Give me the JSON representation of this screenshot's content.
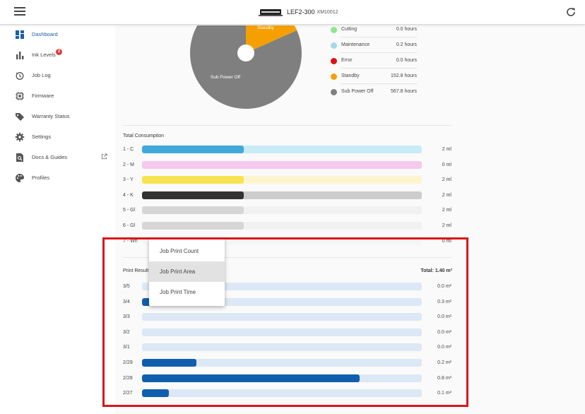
{
  "header": {
    "device_name": "LEF2-300",
    "device_serial": "XM10012"
  },
  "icons": {
    "menu": "hamburger-menu-icon",
    "refresh": "refresh-icon",
    "printer": "printer-icon"
  },
  "sidebar": {
    "items": [
      {
        "label": "Dashboard",
        "icon": "dashboard-icon",
        "active": true
      },
      {
        "label": "Ink Levels",
        "icon": "bar-chart-icon",
        "badge": "2"
      },
      {
        "label": "Job Log",
        "icon": "history-icon"
      },
      {
        "label": "Firmware",
        "icon": "chip-icon"
      },
      {
        "label": "Warranty Status",
        "icon": "tag-icon"
      },
      {
        "label": "Settings",
        "icon": "gear-icon"
      },
      {
        "label": "Docs & Guides",
        "icon": "document-search-icon",
        "external": true
      },
      {
        "label": "Profiles",
        "icon": "palette-icon"
      }
    ]
  },
  "status_pie": {
    "slice_labels": {
      "standby": "Standby",
      "sub_power_off": "Sub Power Off"
    },
    "legend": [
      {
        "label": "Cutting",
        "value": "0.0 hours",
        "hours": 0.0,
        "color": "#8fe68f"
      },
      {
        "label": "Maintenance",
        "value": "0.2 hours",
        "hours": 0.2,
        "color": "#a8d8e8"
      },
      {
        "label": "Error",
        "value": "0.0 hours",
        "hours": 0.0,
        "color": "#e01010"
      },
      {
        "label": "Standby",
        "value": "152.8 hours",
        "hours": 152.8,
        "color": "#f5a000"
      },
      {
        "label": "Sub Power Off",
        "value": "567.8 hours",
        "hours": 567.8,
        "color": "#7f7f7f"
      }
    ]
  },
  "consumption": {
    "title": "Total Consumption",
    "max_ml": 5.5,
    "rows": [
      {
        "label": "1 - C",
        "value": "2 ml",
        "ml": 2,
        "fill": "#3fa9da",
        "track": "#c8ebf8"
      },
      {
        "label": "2 - M",
        "value": "0 ml",
        "ml": 0,
        "fill": "#ef7fd8",
        "track": "#f6c8ee"
      },
      {
        "label": "3 - Y",
        "value": "2 ml",
        "ml": 2,
        "fill": "#f7e34f",
        "track": "#fbf4cf"
      },
      {
        "label": "4 - K",
        "value": "2 ml",
        "ml": 2,
        "fill": "#333333",
        "track": "#cccccc"
      },
      {
        "label": "5 - Gl",
        "value": "2 ml",
        "ml": 2,
        "fill": "#d6d6d6",
        "track": "#f1f1f1"
      },
      {
        "label": "6 - Gl",
        "value": "2 ml",
        "ml": 2,
        "fill": "#d6d6d6",
        "track": "#f1f1f1"
      },
      {
        "label": "7 - Wh",
        "value": "0 ml",
        "ml": 0,
        "fill": "#efefef",
        "track": "#f6f6f6"
      }
    ]
  },
  "print_results": {
    "title": "Print Result",
    "total": "Total: 1.40 m²",
    "max_value": 1.03,
    "fill": "#0f5fae",
    "track": "#dce8f5",
    "rows": [
      {
        "label": "3/5",
        "value": "0.0 m²",
        "amount": 0.0
      },
      {
        "label": "3/4",
        "value": "0.3 m²",
        "amount": 0.3
      },
      {
        "label": "3/3",
        "value": "0.0 m²",
        "amount": 0.0
      },
      {
        "label": "3/2",
        "value": "0.0 m²",
        "amount": 0.0
      },
      {
        "label": "3/1",
        "value": "0.0 m²",
        "amount": 0.0
      },
      {
        "label": "2/29",
        "value": "0.2 m²",
        "amount": 0.2
      },
      {
        "label": "2/28",
        "value": "0.8 m²",
        "amount": 0.8
      },
      {
        "label": "2/27",
        "value": "0.1 m²",
        "amount": 0.1
      }
    ]
  },
  "dropdown": {
    "items": [
      {
        "label": "Job Print Count"
      },
      {
        "label": "Job Print Area",
        "selected": true
      },
      {
        "label": "Job Print Time"
      }
    ]
  },
  "annotation": {
    "highlight_color": "#d9161b"
  }
}
